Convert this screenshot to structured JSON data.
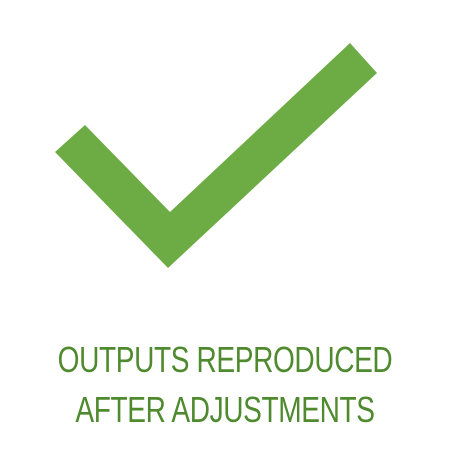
{
  "colors": {
    "accent": "#6dac45",
    "text": "#4f8a2e",
    "background": "#ffffff"
  },
  "status": {
    "icon": "checkmark-icon",
    "lines": [
      "OUTPUTS REPRODUCED",
      "AFTER ADJUSTMENTS"
    ]
  }
}
